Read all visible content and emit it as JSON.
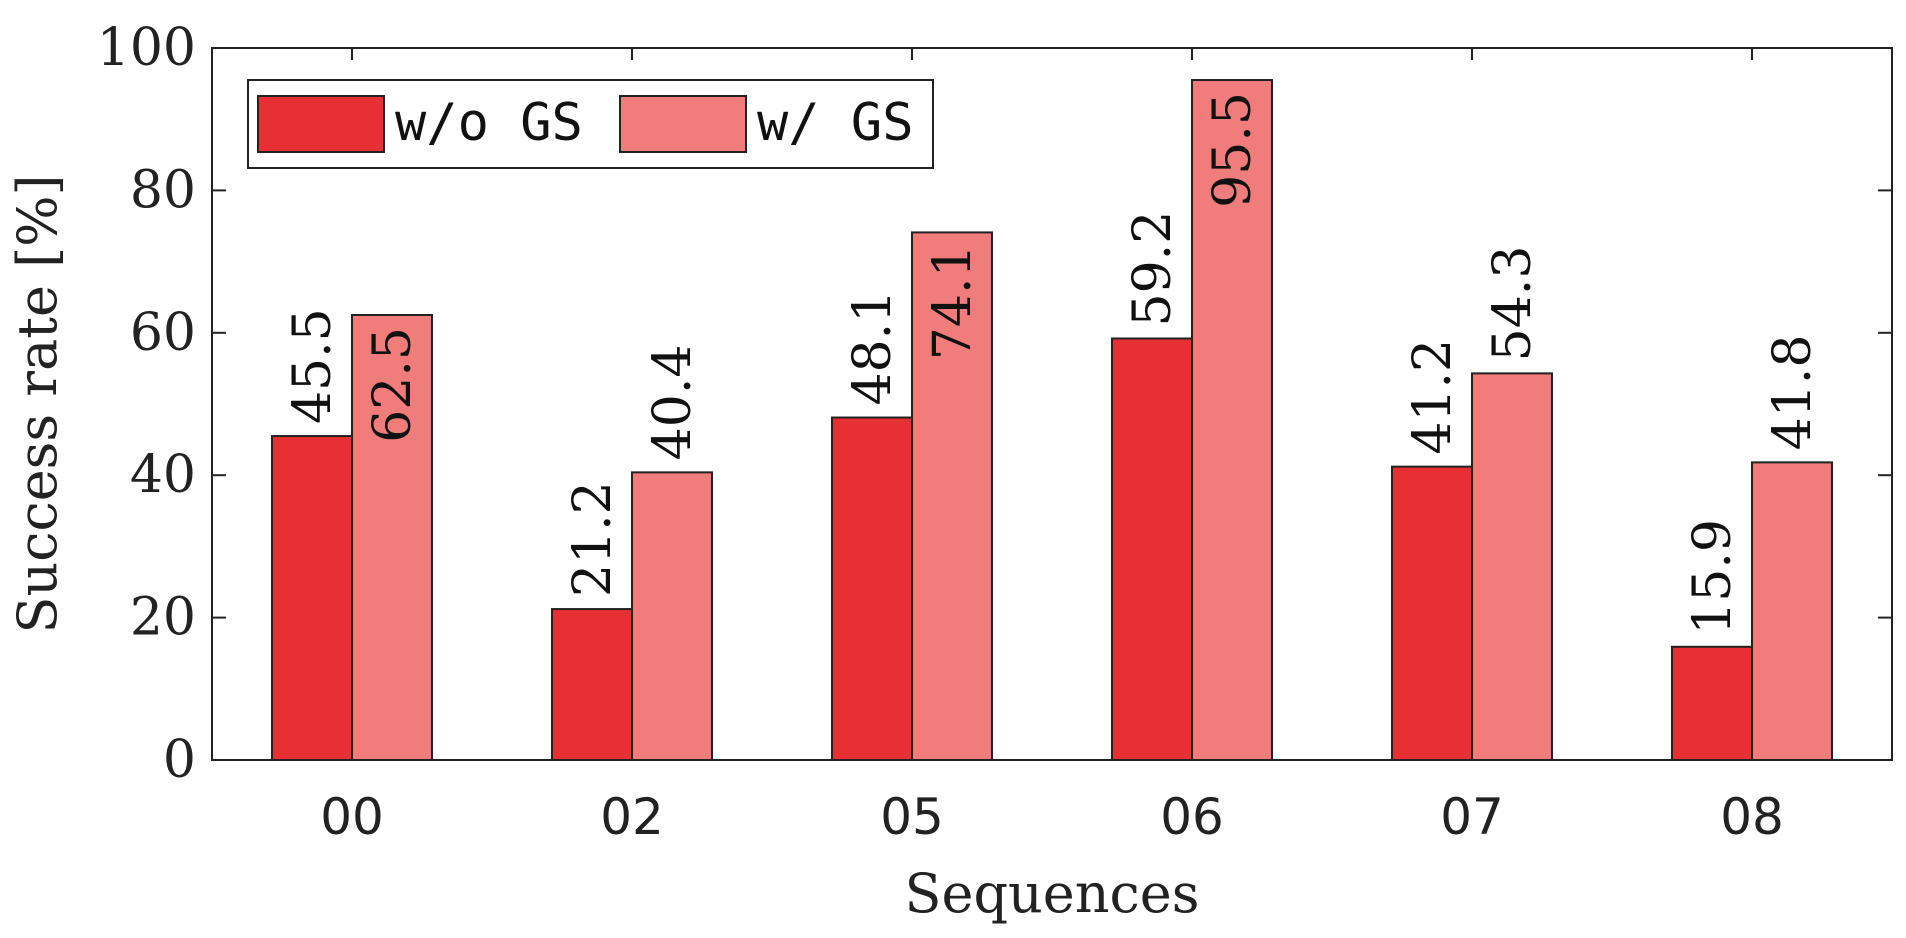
{
  "chart_data": {
    "type": "bar",
    "xlabel": "Sequences",
    "ylabel": "Success rate [%]",
    "ylim": [
      0,
      100
    ],
    "yticks": [
      "0",
      "20",
      "40",
      "60",
      "80",
      "100"
    ],
    "categories": [
      "00",
      "02",
      "05",
      "06",
      "07",
      "08"
    ],
    "series": [
      {
        "name": "w/o GS",
        "color": "#e63034",
        "values": [
          45.5,
          21.2,
          48.1,
          59.2,
          41.2,
          15.9
        ],
        "labels": [
          "45.5",
          "21.2",
          "48.1",
          "59.2",
          "41.2",
          "15.9"
        ]
      },
      {
        "name": "w/ GS",
        "color": "#f07c7c",
        "values": [
          62.5,
          40.4,
          74.1,
          95.5,
          54.3,
          41.8
        ],
        "labels": [
          "62.5",
          "40.4",
          "74.1",
          "95.5",
          "54.3",
          "41.8"
        ]
      }
    ],
    "legend_position": "top-left",
    "grid": false
  }
}
